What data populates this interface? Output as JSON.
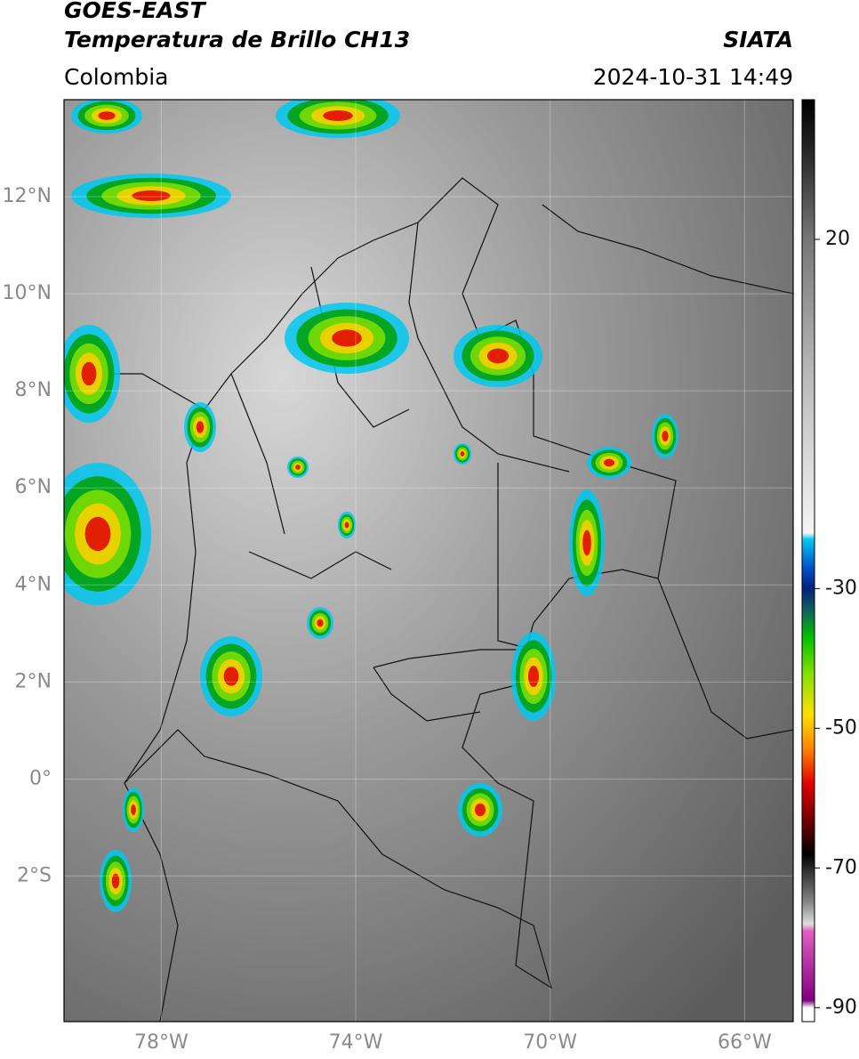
{
  "header": {
    "title_line_1": "GOES-EAST",
    "title_line_2": "Temperatura de Brillo CH13",
    "source": "SIATA",
    "region": "Colombia",
    "datetime": "2024-10-31 14:49"
  },
  "map": {
    "xlim": [
      -80,
      -65
    ],
    "ylim": [
      -5,
      14
    ],
    "xticks": [
      {
        "value": -78,
        "label": "78°W"
      },
      {
        "value": -74,
        "label": "74°W"
      },
      {
        "value": -70,
        "label": "70°W"
      },
      {
        "value": -66,
        "label": "66°W"
      }
    ],
    "yticks": [
      {
        "value": 12,
        "label": "12°N"
      },
      {
        "value": 10,
        "label": "10°N"
      },
      {
        "value": 8,
        "label": "8°N"
      },
      {
        "value": 6,
        "label": "6°N"
      },
      {
        "value": 4,
        "label": "4°N"
      },
      {
        "value": 2,
        "label": "2°N"
      },
      {
        "value": 0,
        "label": "0°"
      },
      {
        "value": -2,
        "label": "2°S"
      }
    ]
  },
  "colorbar": {
    "lim": [
      -92,
      40
    ],
    "ticks": [
      20,
      -30,
      -50,
      -70,
      -90
    ]
  }
}
